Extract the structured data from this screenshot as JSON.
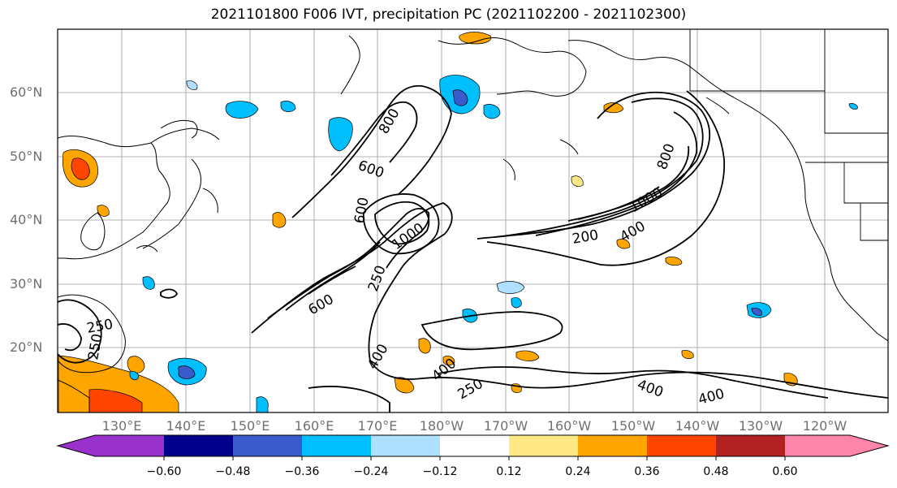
{
  "title": "2021101800 F006 IVT, precipitation PC (2021102200 - 2021102300)",
  "lat_labels": [
    "60°N",
    "50°N",
    "40°N",
    "30°N",
    "20°N"
  ],
  "lon_labels": [
    "130°E",
    "140°E",
    "150°E",
    "160°E",
    "170°E",
    "180°W",
    "170°W",
    "160°W",
    "150°W",
    "140°W",
    "130°W",
    "120°W"
  ],
  "colorbar": {
    "ticks": [
      "−0.60",
      "−0.48",
      "−0.36",
      "−0.24",
      "−0.12",
      "0.12",
      "0.24",
      "0.36",
      "0.48",
      "0.60"
    ],
    "colors": [
      "#9932cc",
      "#00008b",
      "#3a5bcc",
      "#00bfff",
      "#b0e0ff",
      "#ffffff",
      "#ffe985",
      "#ffa500",
      "#ff4500",
      "#b22222",
      "#ff85aa"
    ]
  },
  "contour_labels": [
    "250",
    "250",
    "250",
    "400",
    "400",
    "400",
    "400",
    "600",
    "600",
    "600",
    "800",
    "1000",
    "1000",
    "800",
    "200",
    "400",
    "250"
  ]
}
